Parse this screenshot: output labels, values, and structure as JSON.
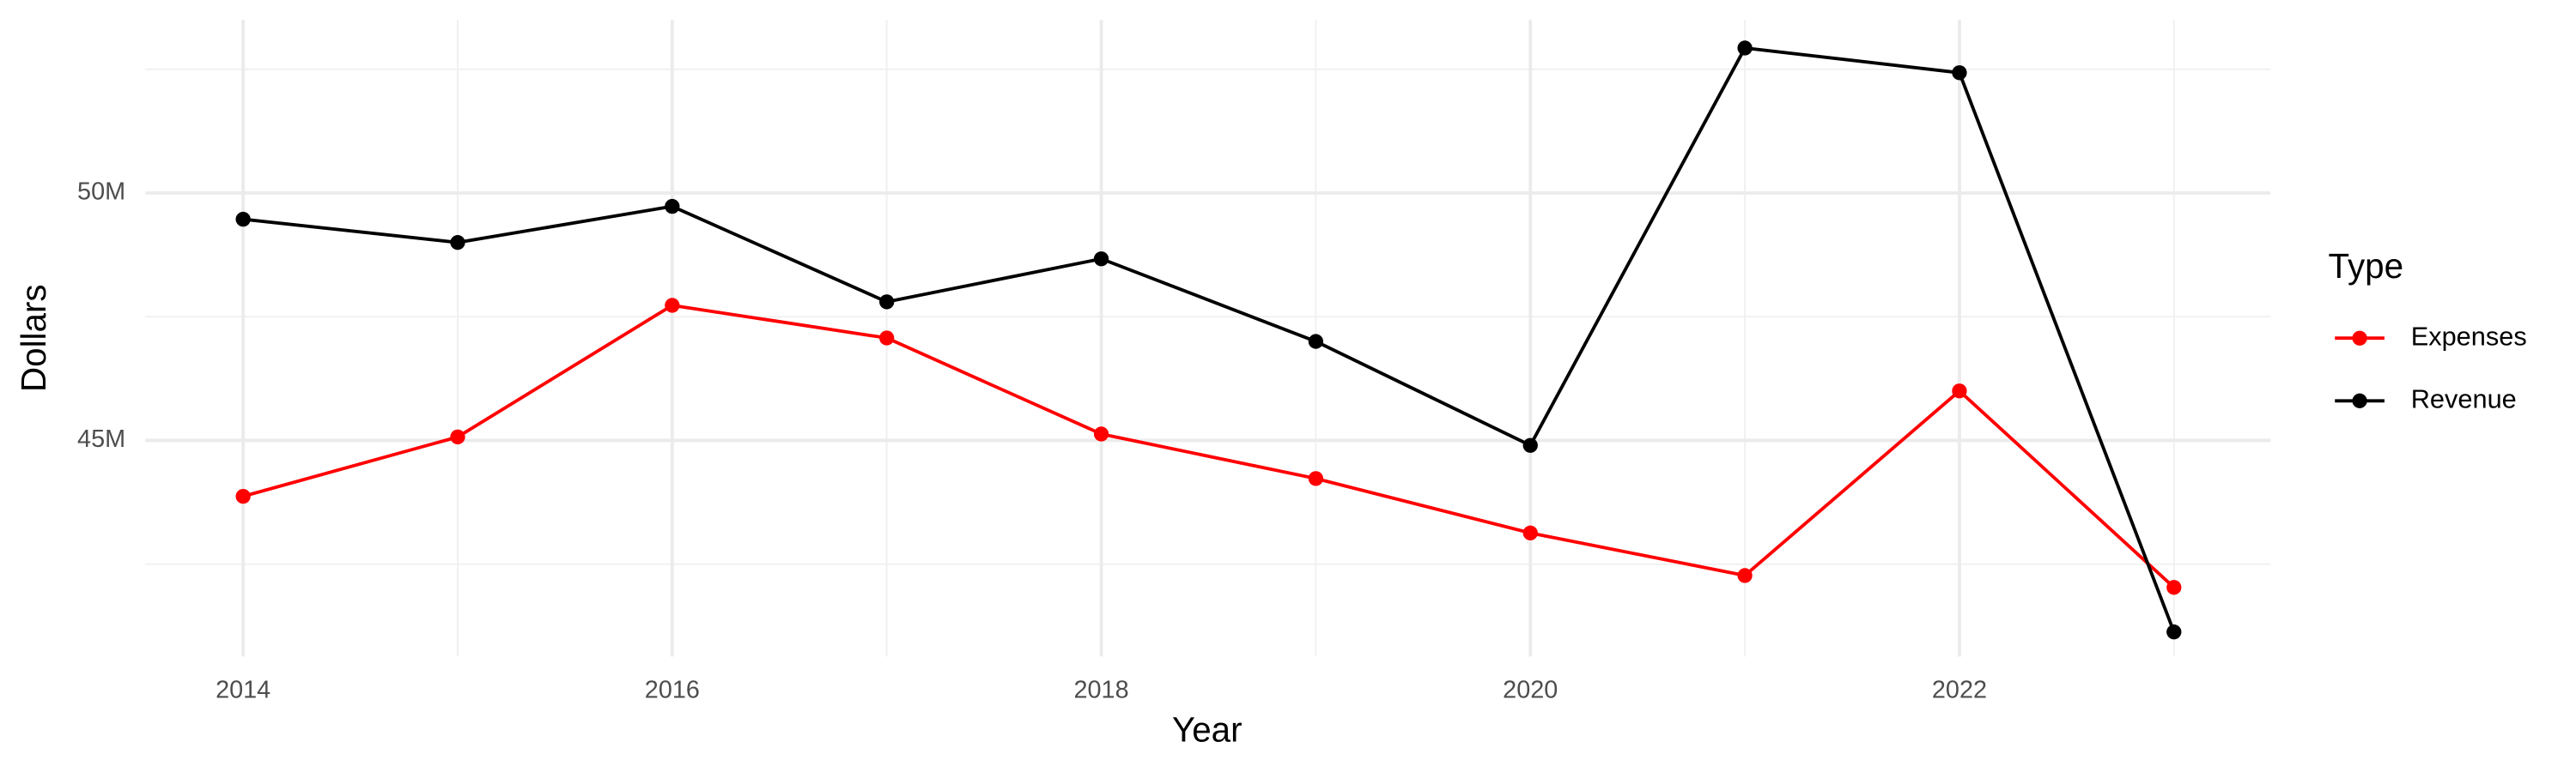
{
  "chart_data": {
    "type": "line",
    "x_label": "Year",
    "y_label": "Dollars",
    "legend_title": "Type",
    "legend": "right",
    "x": [
      2014,
      2015,
      2016,
      2017,
      2018,
      2019,
      2020,
      2021,
      2022,
      2023
    ],
    "series": [
      {
        "name": "Expenses",
        "color": "#ff0000",
        "values": [
          43870000,
          45070000,
          47730000,
          47070000,
          45130000,
          44230000,
          43130000,
          42270000,
          46000000,
          42030000
        ]
      },
      {
        "name": "Revenue",
        "color": "#000000",
        "values": [
          49470000,
          49000000,
          49730000,
          47800000,
          48670000,
          47000000,
          44900000,
          52930000,
          52430000,
          41130000
        ]
      }
    ],
    "xlim": [
      2013.544,
      2023.45
    ],
    "xticks": [
      2014,
      2016,
      2018,
      2020,
      2022
    ],
    "xminor": [
      2015,
      2017,
      2019,
      2021,
      2023
    ],
    "ylim": [
      40633000,
      53500000
    ],
    "yticks": [
      {
        "value": 45000000,
        "label": "45M"
      },
      {
        "value": 50000000,
        "label": "50M"
      }
    ],
    "yminor": [
      42500000,
      47500000,
      52500000
    ],
    "grid": true
  }
}
